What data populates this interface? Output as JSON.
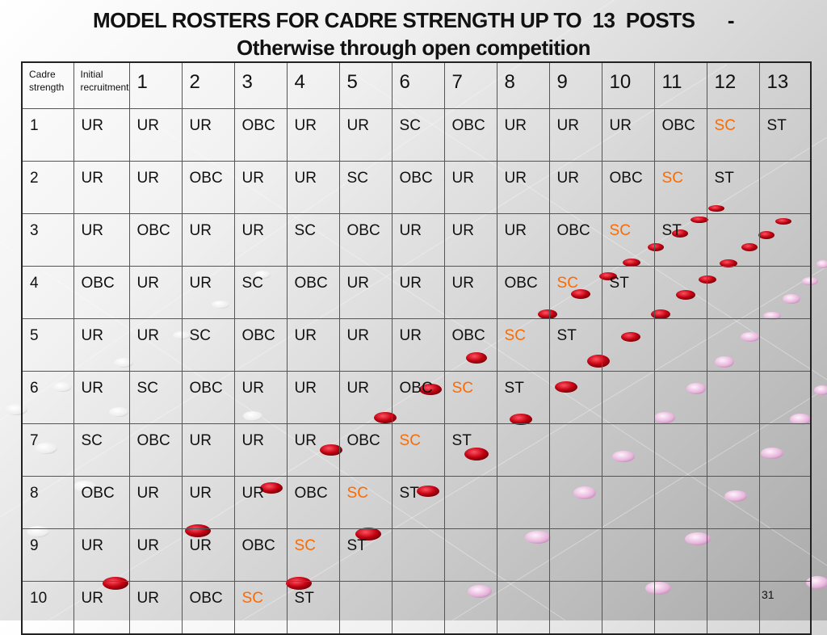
{
  "title": {
    "line1": "MODEL ROSTERS FOR CADRE STRENGTH UP TO  13  POSTS      -",
    "line2": "Otherwise through open competition"
  },
  "colors": {
    "sc_text": "#ff6a00",
    "dot_red": "#c00010",
    "dot_pink": "#e7b6dc"
  },
  "table": {
    "header_cadre": "Cadre strength",
    "header_initial": "Initial recruitment",
    "post_numbers": [
      "1",
      "2",
      "3",
      "4",
      "5",
      "6",
      "7",
      "8",
      "9",
      "10",
      "11",
      "12",
      "13"
    ],
    "rows": [
      {
        "strength": "1",
        "initial": "UR",
        "posts": [
          "UR",
          "UR",
          "OBC",
          "UR",
          "UR",
          "SC",
          "OBC",
          "UR",
          "UR",
          "UR",
          "OBC",
          "SC",
          "ST"
        ]
      },
      {
        "strength": "2",
        "initial": "UR",
        "posts": [
          "UR",
          "OBC",
          "UR",
          "UR",
          "SC",
          "OBC",
          "UR",
          "UR",
          "UR",
          "OBC",
          "SC",
          "ST",
          ""
        ]
      },
      {
        "strength": "3",
        "initial": "UR",
        "posts": [
          "OBC",
          "UR",
          "UR",
          "SC",
          "OBC",
          "UR",
          "UR",
          "UR",
          "OBC",
          "SC",
          "ST",
          "",
          ""
        ]
      },
      {
        "strength": "4",
        "initial": "OBC",
        "posts": [
          "UR",
          "UR",
          "SC",
          "OBC",
          "UR",
          "UR",
          "UR",
          "OBC",
          "SC",
          "ST",
          "",
          "",
          ""
        ]
      },
      {
        "strength": "5",
        "initial": "UR",
        "posts": [
          "UR",
          "SC",
          "OBC",
          "UR",
          "UR",
          "UR",
          "OBC",
          "SC",
          "ST",
          "",
          "",
          "",
          ""
        ]
      },
      {
        "strength": "6",
        "initial": "UR",
        "posts": [
          "SC",
          "OBC",
          "UR",
          "UR",
          "UR",
          "OBC",
          "SC",
          "ST",
          "",
          "",
          "",
          "",
          ""
        ]
      },
      {
        "strength": "7",
        "initial": "SC",
        "posts": [
          "OBC",
          "UR",
          "UR",
          "UR",
          "OBC",
          "SC",
          "ST",
          "",
          "",
          "",
          "",
          "",
          ""
        ]
      },
      {
        "strength": "8",
        "initial": "OBC",
        "posts": [
          "UR",
          "UR",
          "UR",
          "OBC",
          "SC",
          "ST",
          "",
          "",
          "",
          "",
          "",
          "",
          ""
        ]
      },
      {
        "strength": "9",
        "initial": "UR",
        "posts": [
          "UR",
          "UR",
          "OBC",
          "SC",
          "ST",
          "",
          "",
          "",
          "",
          "",
          "",
          "",
          ""
        ]
      },
      {
        "strength": "10",
        "initial": "UR",
        "posts": [
          "UR",
          "OBC",
          "SC",
          "ST",
          "",
          "",
          "",
          "",
          "",
          "",
          "",
          "",
          ""
        ]
      }
    ]
  },
  "chart_data": {
    "type": "table",
    "columns": [
      "Cadre strength",
      "Initial recruitment",
      "1",
      "2",
      "3",
      "4",
      "5",
      "6",
      "7",
      "8",
      "9",
      "10",
      "11",
      "12",
      "13"
    ],
    "rows": [
      [
        "1",
        "UR",
        "UR",
        "UR",
        "OBC",
        "UR",
        "UR",
        "SC",
        "OBC",
        "UR",
        "UR",
        "UR",
        "OBC",
        "SC",
        "ST"
      ],
      [
        "2",
        "UR",
        "UR",
        "OBC",
        "UR",
        "UR",
        "SC",
        "OBC",
        "UR",
        "UR",
        "UR",
        "OBC",
        "SC",
        "ST",
        ""
      ],
      [
        "3",
        "UR",
        "OBC",
        "UR",
        "UR",
        "SC",
        "OBC",
        "UR",
        "UR",
        "UR",
        "OBC",
        "SC",
        "ST",
        "",
        ""
      ],
      [
        "4",
        "OBC",
        "UR",
        "UR",
        "SC",
        "OBC",
        "UR",
        "UR",
        "UR",
        "OBC",
        "SC",
        "ST",
        "",
        "",
        ""
      ],
      [
        "5",
        "UR",
        "UR",
        "SC",
        "OBC",
        "UR",
        "UR",
        "UR",
        "OBC",
        "SC",
        "ST",
        "",
        "",
        "",
        ""
      ],
      [
        "6",
        "UR",
        "SC",
        "OBC",
        "UR",
        "UR",
        "UR",
        "OBC",
        "SC",
        "ST",
        "",
        "",
        "",
        "",
        ""
      ],
      [
        "7",
        "SC",
        "OBC",
        "UR",
        "UR",
        "UR",
        "OBC",
        "SC",
        "ST",
        "",
        "",
        "",
        "",
        "",
        ""
      ],
      [
        "8",
        "OBC",
        "UR",
        "UR",
        "UR",
        "OBC",
        "SC",
        "ST",
        "",
        "",
        "",
        "",
        "",
        "",
        ""
      ],
      [
        "9",
        "UR",
        "UR",
        "UR",
        "OBC",
        "SC",
        "ST",
        "",
        "",
        "",
        "",
        "",
        "",
        "",
        ""
      ],
      [
        "10",
        "UR",
        "UR",
        "OBC",
        "SC",
        "ST",
        "",
        "",
        "",
        "",
        "",
        "",
        "",
        "",
        ""
      ]
    ]
  },
  "page_number": "31"
}
